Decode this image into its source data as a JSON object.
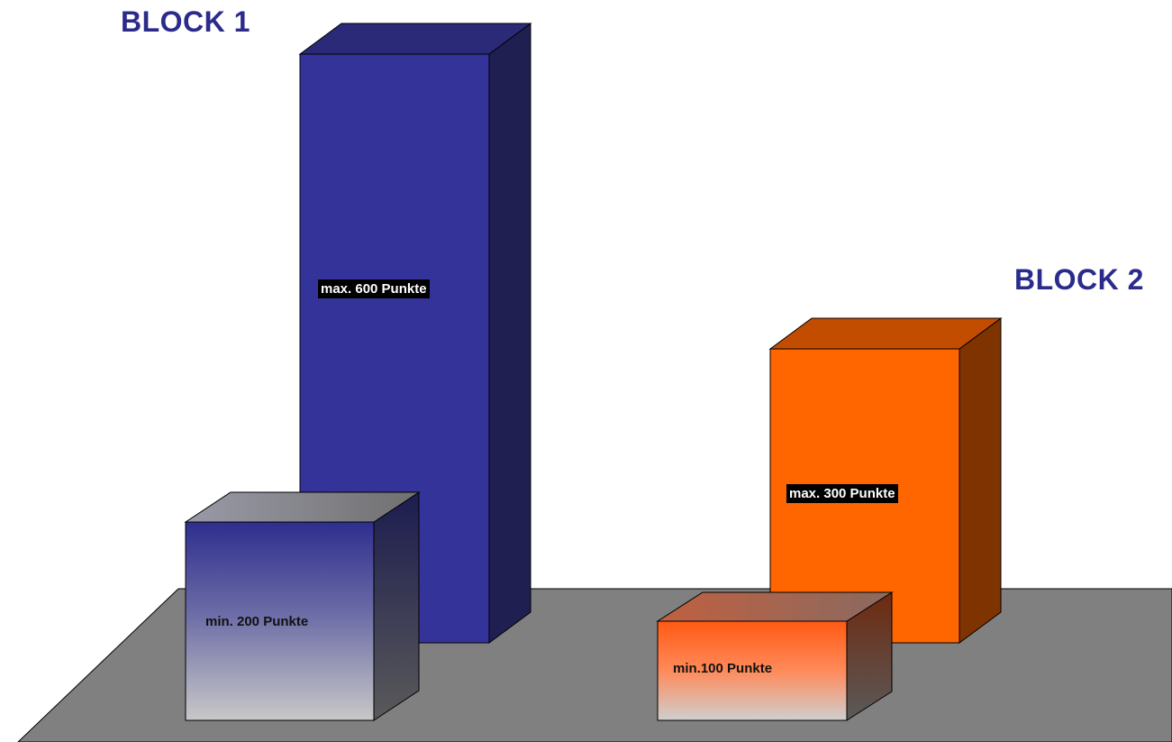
{
  "chart_data": {
    "type": "bar",
    "style": "3d-columns",
    "groups": [
      {
        "title": "BLOCK 1",
        "bars": [
          {
            "label": "max. 600 Punkte",
            "value": 600,
            "color": "#333399"
          },
          {
            "label": "min. 200 Punkte",
            "value": 200,
            "color": "#33338c"
          }
        ]
      },
      {
        "title": "BLOCK 2",
        "bars": [
          {
            "label": "max. 300 Punkte",
            "value": 300,
            "color": "#ff6600"
          },
          {
            "label": "min.100 Punkte",
            "value": 100,
            "color": "#ff6633"
          }
        ]
      }
    ],
    "floor_color": "#808080"
  }
}
